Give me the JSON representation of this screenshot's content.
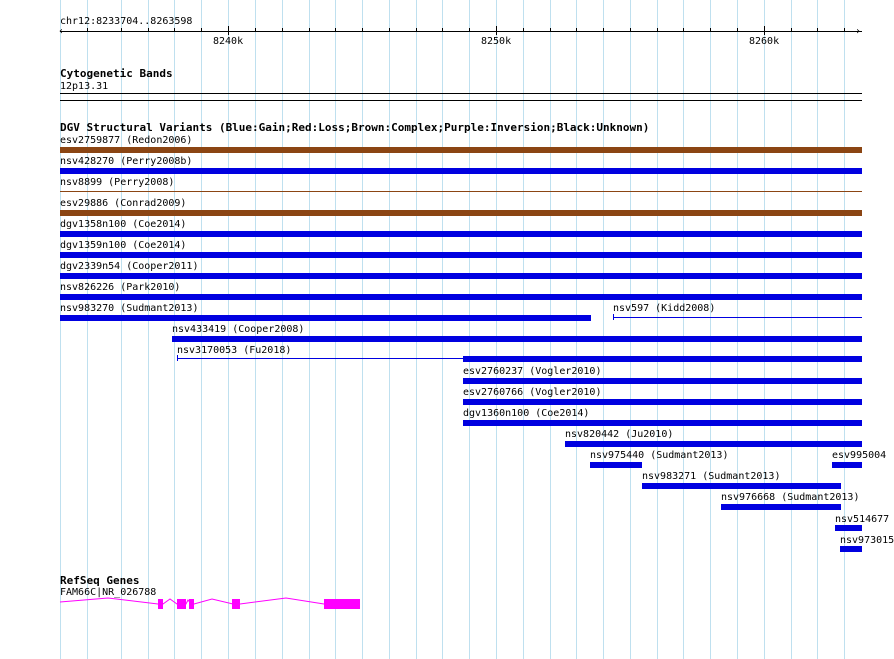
{
  "position": {
    "label": "chr12:8233704..8263598",
    "ticks": [
      "8240k",
      "8250k",
      "8260k"
    ]
  },
  "cytoband": {
    "title": "Cytogenetic Bands",
    "band": "12p13.31"
  },
  "dgv": {
    "title": "DGV Structural Variants (Blue:Gain;Red:Loss;Brown:Complex;Purple:Inversion;Black:Unknown)",
    "colors": {
      "gain": "#0000e0",
      "complex": "#8b4513"
    },
    "features": [
      {
        "label": "esv2759877 (Redon2006)",
        "type": "complex"
      },
      {
        "label": "nsv428270 (Perry2008b)",
        "type": "gain"
      },
      {
        "label": "nsv8899 (Perry2008)",
        "type": "complex"
      },
      {
        "label": "esv29886 (Conrad2009)",
        "type": "complex"
      },
      {
        "label": "dgv1358n100 (Coe2014)",
        "type": "gain"
      },
      {
        "label": "dgv1359n100 (Coe2014)",
        "type": "gain"
      },
      {
        "label": "dgv2339n54 (Cooper2011)",
        "type": "gain"
      },
      {
        "label": "nsv826226 (Park2010)",
        "type": "gain"
      },
      {
        "label": "nsv983270 (Sudmant2013)",
        "type": "gain"
      },
      {
        "label": "nsv597 (Kidd2008)",
        "type": "gain"
      },
      {
        "label": "nsv433419 (Cooper2008)",
        "type": "gain"
      },
      {
        "label": "nsv3170053 (Fu2018)",
        "type": "gain"
      },
      {
        "label": "esv2760237 (Vogler2010)",
        "type": "gain"
      },
      {
        "label": "esv2760766 (Vogler2010)",
        "type": "gain"
      },
      {
        "label": "dgv1360n100 (Coe2014)",
        "type": "gain"
      },
      {
        "label": "nsv820442 (Ju2010)",
        "type": "gain"
      },
      {
        "label": "nsv975440 (Sudmant2013)",
        "type": "gain"
      },
      {
        "label": "esv995004",
        "type": "gain"
      },
      {
        "label": "nsv983271 (Sudmant2013)",
        "type": "gain"
      },
      {
        "label": "nsv976668 (Sudmant2013)",
        "type": "gain"
      },
      {
        "label": "nsv514677",
        "type": "gain"
      },
      {
        "label": "nsv973015",
        "type": "gain"
      }
    ]
  },
  "refseq": {
    "title": "RefSeq Genes",
    "gene": "FAM66C|NR_026788",
    "color": "#ff00ff"
  }
}
